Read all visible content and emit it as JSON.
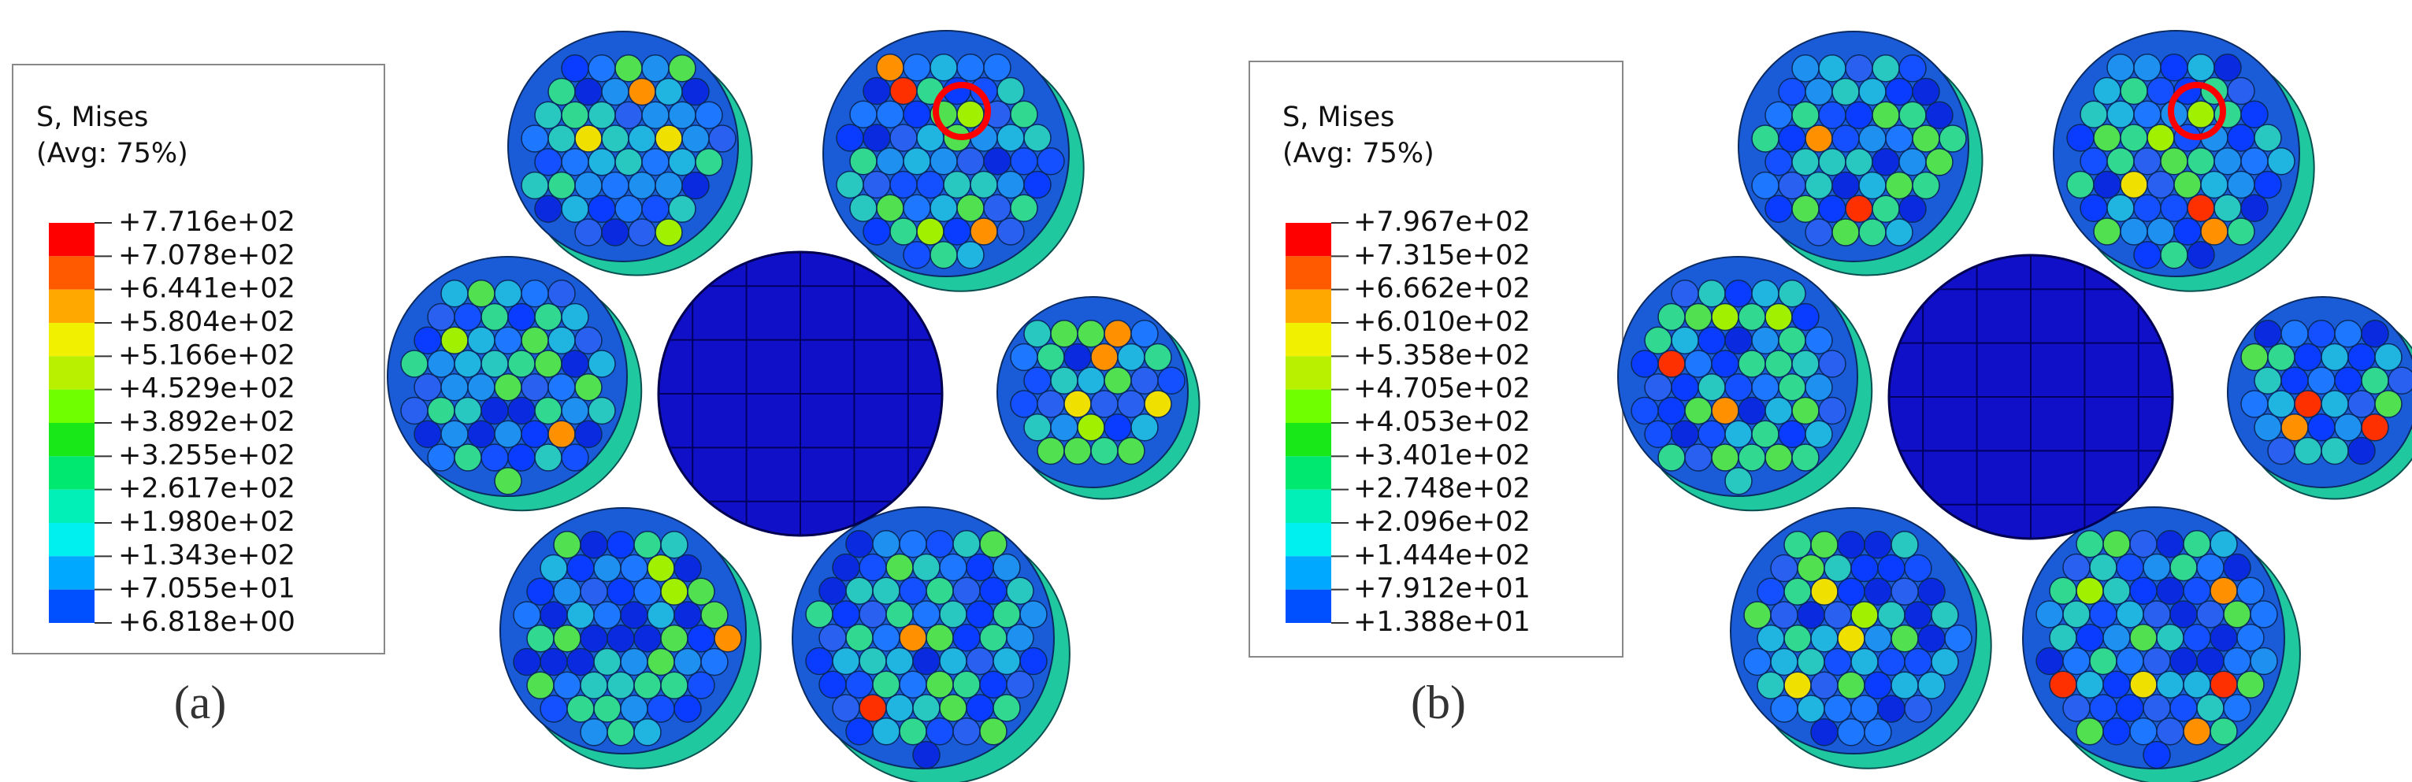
{
  "panels": [
    {
      "label": "(a)",
      "legend": {
        "title": "S, Mises",
        "subtitle": "(Avg: 75%)",
        "levels": [
          "+7.716e+02",
          "+7.078e+02",
          "+6.441e+02",
          "+5.804e+02",
          "+5.166e+02",
          "+4.529e+02",
          "+3.892e+02",
          "+3.255e+02",
          "+2.617e+02",
          "+1.980e+02",
          "+1.343e+02",
          "+7.055e+01",
          "+6.818e+00"
        ]
      }
    },
    {
      "label": "(b)",
      "legend": {
        "title": "S, Mises",
        "subtitle": "(Avg: 75%)",
        "levels": [
          "+7.967e+02",
          "+7.315e+02",
          "+6.662e+02",
          "+6.010e+02",
          "+5.358e+02",
          "+4.705e+02",
          "+4.053e+02",
          "+3.401e+02",
          "+2.748e+02",
          "+2.096e+02",
          "+1.444e+02",
          "+7.912e+01",
          "+1.388e+01"
        ]
      }
    }
  ]
}
